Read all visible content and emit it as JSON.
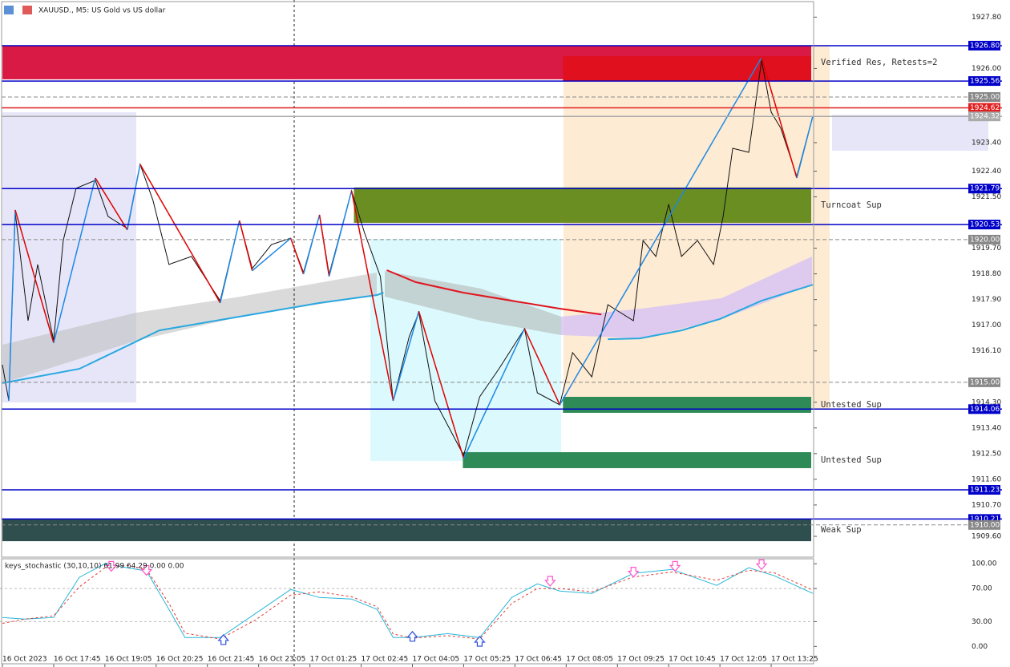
{
  "header": {
    "symbol": "XAUUSD., M5: US Gold vs US dollar"
  },
  "chart_data": [
    {
      "type": "line",
      "xlim": [
        -0.75,
        253.25
      ],
      "ylim": [
        1908.87,
        1928.4
      ],
      "xticks": [
        {
          "value": 0,
          "label": "16 Oct 2023"
        },
        {
          "value": 16,
          "label": "16 Oct 17:45"
        },
        {
          "value": 32,
          "label": "16 Oct 19:05"
        },
        {
          "value": 48,
          "label": "16 Oct 20:25"
        },
        {
          "value": 64,
          "label": "16 Oct 21:45"
        },
        {
          "value": 80,
          "label": "16 Oct 23:05"
        },
        {
          "value": 96,
          "label": "17 Oct 01:25"
        },
        {
          "value": 112,
          "label": "17 Oct 02:45"
        },
        {
          "value": 128,
          "label": "17 Oct 04:05"
        },
        {
          "value": 144,
          "label": "17 Oct 05:25"
        },
        {
          "value": 160,
          "label": "17 Oct 06:45"
        },
        {
          "value": 176,
          "label": "17 Oct 08:05"
        },
        {
          "value": 192,
          "label": "17 Oct 09:25"
        },
        {
          "value": 208,
          "label": "17 Oct 10:45"
        },
        {
          "value": 224,
          "label": "17 Oct 12:05"
        },
        {
          "value": 240,
          "label": "17 Oct 13:25"
        }
      ],
      "yticks": [
        {
          "value": 1927.8,
          "label": "1927.80"
        },
        {
          "value": 1926,
          "label": "1926.00"
        },
        {
          "value": 1923.4,
          "label": "1923.40"
        },
        {
          "value": 1922.4,
          "label": "1922.40"
        },
        {
          "value": 1921.5,
          "label": "1921.50"
        },
        {
          "value": 1919.7,
          "label": "1919.70"
        },
        {
          "value": 1918.8,
          "label": "1918.80"
        },
        {
          "value": 1917.9,
          "label": "1917.90"
        },
        {
          "value": 1917,
          "label": "1917.00"
        },
        {
          "value": 1916.1,
          "label": "1916.10"
        },
        {
          "value": 1914.3,
          "label": "1914.30"
        },
        {
          "value": 1913.4,
          "label": "1913.40"
        },
        {
          "value": 1912.5,
          "label": "1912.50"
        },
        {
          "value": 1911.6,
          "label": "1911.60"
        },
        {
          "value": 1910.7,
          "label": "1910.70"
        },
        {
          "value": 1909.6,
          "label": "1909.60"
        }
      ],
      "zones": [
        {
          "label": "Verified Res, Retests=2",
          "ylim": [
            1925.62,
            1926.8
          ],
          "xlim": [
            0,
            252.5
          ],
          "color": "#d91a45"
        },
        {
          "ylim": [
            1925.56,
            1926.43
          ],
          "xlim": [
            175,
            252.5
          ],
          "color": "#e0101f"
        },
        {
          "label": "Turncoat Sup",
          "ylim": [
            1920.59,
            1921.83
          ],
          "xlim": [
            109.75,
            252.5
          ],
          "color": "#6b8e23"
        },
        {
          "label": "Untested Sup",
          "ylim": [
            1913.93,
            1914.49
          ],
          "xlim": [
            175,
            252.5
          ],
          "color": "#2e8b57"
        },
        {
          "label": "Untested Sup",
          "ylim": [
            1911.99,
            1912.55
          ],
          "xlim": [
            143.75,
            252.5
          ],
          "color": "#2e8b57"
        },
        {
          "label": "Weak Sup",
          "ylim": [
            1909.43,
            1910.22
          ],
          "xlim": [
            0,
            252.5
          ],
          "color": "#2f4f4f"
        }
      ],
      "series": [
        {
          "color": "#111111",
          "width": 1,
          "x": [
            0,
            2,
            4,
            8,
            11,
            16,
            19,
            23,
            29,
            33,
            39,
            43,
            47,
            52,
            59,
            68,
            74,
            78,
            84,
            90,
            94,
            99,
            102,
            109,
            113,
            118,
            122,
            127,
            130,
            135,
            144,
            149,
            155,
            163,
            167,
            174,
            178,
            184,
            189,
            197,
            200,
            204,
            208,
            212,
            217,
            222,
            225,
            228,
            233,
            237,
            240,
            243,
            248,
            253
          ],
          "values": [
            1915.61,
            1914.35,
            1920.95,
            1917.16,
            1919.13,
            1916.46,
            1919.97,
            1921.8,
            1922.08,
            1920.81,
            1920.39,
            1922.64,
            1921.38,
            1919.13,
            1919.41,
            1917.86,
            1920.67,
            1918.99,
            1919.83,
            1920.05,
            1918.85,
            1920.87,
            1918.79,
            1921.71,
            1920.25,
            1918.71,
            1914.35,
            1916.6,
            1917.44,
            1914.35,
            1912.44,
            1914.49,
            1915.47,
            1916.88,
            1914.63,
            1914.21,
            1916.04,
            1915.19,
            1917.72,
            1917.16,
            1919.97,
            1919.41,
            1921.24,
            1919.41,
            1919.97,
            1919.13,
            1920.81,
            1923.2,
            1923.06,
            1926.29,
            1924.47,
            1923.91,
            1922.22,
            1924.33
          ]
        },
        {
          "color": "#29a8e0",
          "width": 2,
          "x": [
            0,
            24,
            49,
            74,
            99,
            117,
            119,
            150,
            189,
            199,
            212,
            224,
            237,
            253
          ],
          "values": [
            1914.97,
            1915.47,
            1916.82,
            1917.3,
            1917.78,
            1918.06,
            1918.14,
            null,
            1916.51,
            1916.54,
            1916.82,
            1917.22,
            1917.86,
            1918.42
          ]
        },
        {
          "color": "#e0141e",
          "width": 2,
          "x": [
            120,
            129,
            144,
            159,
            174,
            187
          ],
          "values": [
            1918.93,
            1918.51,
            1918.14,
            1917.86,
            1917.58,
            1917.38
          ]
        }
      ],
      "zigzag": {
        "up_color": "#1e88e5",
        "down_color": "#e00000",
        "x": [
          2,
          4,
          16,
          29,
          39,
          43,
          68,
          74,
          78,
          90,
          94,
          99,
          102,
          109,
          122,
          130,
          144,
          163,
          174,
          237,
          248,
          253
        ],
        "values": [
          1914.35,
          1921.04,
          1916.38,
          1922.16,
          1920.34,
          1922.64,
          1917.78,
          1920.67,
          1918.91,
          1920.05,
          1918.79,
          1920.87,
          1918.71,
          1921.71,
          1914.35,
          1917.49,
          1912.33,
          1916.88,
          1914.21,
          1926.38,
          1922.16,
          1924.33
        ]
      },
      "levels": [
        {
          "value": 1926.8,
          "label": "1926.80",
          "color": "#0000c8"
        },
        {
          "value": 1925.56,
          "label": "1925.56",
          "color": "#0000c8"
        },
        {
          "value": 1925,
          "label": "1925.00",
          "color": "#888888",
          "dash": true
        },
        {
          "value": 1924.62,
          "label": "1924.62",
          "color": "#e02020"
        },
        {
          "value": 1924.32,
          "label": "1924.32",
          "color": "#aaaaaa"
        },
        {
          "value": 1921.79,
          "label": "1921.79",
          "color": "#0000c8"
        },
        {
          "value": 1920.53,
          "label": "1920.53",
          "color": "#0000c8"
        },
        {
          "value": 1920,
          "label": "1920.00",
          "color": "#888888",
          "dash": true
        },
        {
          "value": 1915,
          "label": "1915.00",
          "color": "#888888",
          "dash": true
        },
        {
          "value": 1914.06,
          "label": "1914.06",
          "color": "#0000c8"
        },
        {
          "value": 1911.23,
          "label": "1911.23",
          "color": "#0000c8"
        },
        {
          "value": 1910.21,
          "label": "1910.21",
          "color": "#0000c8"
        },
        {
          "value": 1910,
          "label": "1910.00",
          "color": "#888888",
          "dash": true
        }
      ]
    },
    {
      "type": "line",
      "title": "keys_stochastic (30,10,10) 61.99 64.29 0.00 0.00",
      "xlim": [
        -0.75,
        253.25
      ],
      "ylim": [
        -21,
        106
      ],
      "yticks": [
        {
          "value": 100,
          "label": "100.00"
        },
        {
          "value": 70,
          "label": "70.00"
        },
        {
          "value": 30,
          "label": "30.00"
        },
        {
          "value": 0,
          "label": "0.00"
        }
      ],
      "grid": [
        70,
        30
      ],
      "series": [
        {
          "color": "#29b6d8",
          "width": 1,
          "x": [
            0,
            7,
            16,
            24,
            32,
            39,
            45,
            52,
            57,
            68,
            79,
            90,
            99,
            109,
            117,
            122,
            128,
            139,
            149,
            159,
            167,
            174,
            184,
            197,
            209,
            223,
            233,
            241,
            253
          ],
          "values": [
            35.0,
            33.0,
            35.0,
            83.5,
            100,
            95.1,
            91.3,
            44.7,
            10.7,
            10.7,
            39.8,
            68.9,
            59.2,
            57.3,
            44.7,
            10.7,
            10.7,
            15.5,
            10.7,
            59.2,
            75.7,
            67.0,
            64.1,
            88.3,
            93.2,
            73.8,
            95.1,
            85.4,
            64.1
          ]
        },
        {
          "color": "#e53935",
          "width": 1,
          "dash": true,
          "x": [
            0,
            7,
            16,
            24,
            32,
            39,
            45,
            52,
            57,
            68,
            79,
            90,
            99,
            109,
            117,
            122,
            128,
            139,
            149,
            159,
            167,
            174,
            184,
            197,
            209,
            223,
            233,
            241,
            253
          ],
          "values": [
            28,
            33,
            37,
            72,
            95,
            98,
            93,
            52,
            16,
            9,
            32,
            62,
            66,
            60,
            48,
            15,
            10,
            13,
            9,
            52,
            70,
            70,
            66,
            84,
            90,
            80,
            92,
            89,
            68
          ]
        }
      ],
      "signals": [
        {
          "direction": "down",
          "x": 34,
          "value": 93,
          "color": "#ff55cc"
        },
        {
          "direction": "down",
          "x": 45,
          "value": 88,
          "color": "#ff55cc"
        },
        {
          "direction": "up",
          "x": 69,
          "value": 12,
          "color": "#2a50e0"
        },
        {
          "direction": "up",
          "x": 128,
          "value": 16,
          "color": "#2a50e0"
        },
        {
          "direction": "up",
          "x": 149,
          "value": 10,
          "color": "#2a50e0"
        },
        {
          "direction": "down",
          "x": 171,
          "value": 75,
          "color": "#ff55cc"
        },
        {
          "direction": "down",
          "x": 197,
          "value": 86,
          "color": "#ff55cc"
        },
        {
          "direction": "down",
          "x": 210,
          "value": 93,
          "color": "#ff55cc"
        },
        {
          "direction": "down",
          "x": 237,
          "value": 95,
          "color": "#ff55cc"
        }
      ]
    }
  ]
}
